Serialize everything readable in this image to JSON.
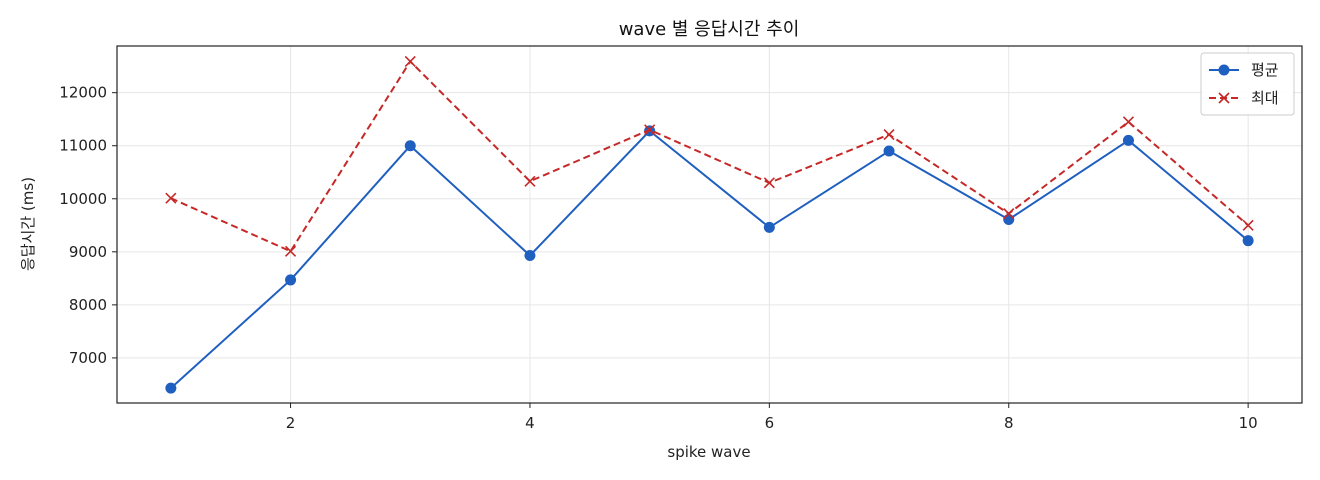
{
  "chart_data": {
    "type": "line",
    "title": "wave 별 응답시간 추이",
    "xlabel": "spike wave",
    "ylabel": "응답시간 (ms)",
    "x": [
      1,
      2,
      3,
      4,
      5,
      6,
      7,
      8,
      9,
      10
    ],
    "xlim": [
      0.55,
      10.45
    ],
    "ylim": [
      6150,
      12880
    ],
    "xticks": [
      2,
      4,
      6,
      8,
      10
    ],
    "yticks": [
      7000,
      8000,
      9000,
      10000,
      11000,
      12000
    ],
    "grid": true,
    "legend_position": "top-right",
    "series": [
      {
        "name": "평균",
        "values": [
          6430,
          8470,
          11000,
          8930,
          11280,
          9460,
          10900,
          9610,
          11100,
          9210
        ],
        "color": "#1f5fbf",
        "marker": "circle",
        "line_style": "solid"
      },
      {
        "name": "최대",
        "values": [
          10010,
          9010,
          12590,
          10330,
          11300,
          10300,
          11210,
          9720,
          11450,
          9500
        ],
        "color": "#c62828",
        "marker": "x",
        "line_style": "dashed"
      }
    ]
  }
}
